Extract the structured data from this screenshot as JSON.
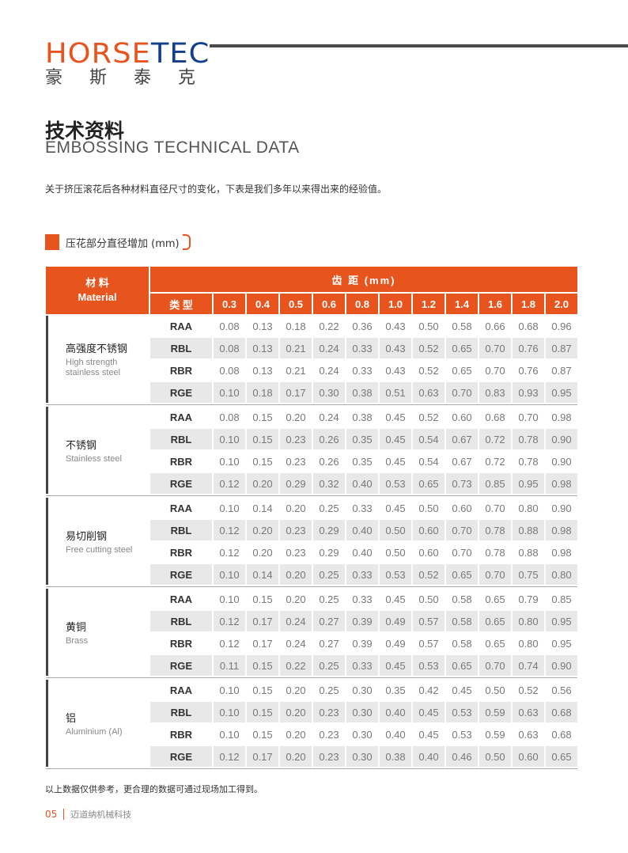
{
  "brand": {
    "logo_part1": "HORSE",
    "logo_part2": "TEC",
    "logo_cn": "豪斯泰克",
    "colors": {
      "orange": "#e8541e",
      "navy": "#123f8c"
    }
  },
  "title": {
    "cn": "技术资料",
    "en": "EMBOSSING TECHNICAL DATA"
  },
  "intro": "关于挤压滚花后各种材料直径尺寸的变化，下表是我们多年以来得出来的经验值。",
  "section_label": "压花部分直径增加 (mm)",
  "table": {
    "material_header_cn": "材 料",
    "material_header_en": "Material",
    "pitch_header": "齿 距 (mm)",
    "type_header": "类 型",
    "pitches": [
      "0.3",
      "0.4",
      "0.5",
      "0.6",
      "0.8",
      "1.0",
      "1.2",
      "1.4",
      "1.6",
      "1.8",
      "2.0"
    ],
    "groups": [
      {
        "cn": "高强度不锈钢",
        "en": "High strength stainless steel",
        "rows": [
          {
            "type": "RAA",
            "values": [
              "0.08",
              "0.13",
              "0.18",
              "0.22",
              "0.36",
              "0.43",
              "0.50",
              "0.58",
              "0.66",
              "0.68",
              "0.96"
            ]
          },
          {
            "type": "RBL",
            "values": [
              "0.08",
              "0.13",
              "0.21",
              "0.24",
              "0.33",
              "0.43",
              "0.52",
              "0.65",
              "0.70",
              "0.76",
              "0.87"
            ]
          },
          {
            "type": "RBR",
            "values": [
              "0.08",
              "0.13",
              "0.21",
              "0.24",
              "0.33",
              "0.43",
              "0.52",
              "0.65",
              "0.70",
              "0.76",
              "0.87"
            ]
          },
          {
            "type": "RGE",
            "values": [
              "0.10",
              "0.18",
              "0.17",
              "0.30",
              "0.38",
              "0.51",
              "0.63",
              "0.70",
              "0.83",
              "0.93",
              "0.95"
            ]
          }
        ]
      },
      {
        "cn": "不锈钢",
        "en": "Stainless steel",
        "rows": [
          {
            "type": "RAA",
            "values": [
              "0.08",
              "0.15",
              "0.20",
              "0.24",
              "0.38",
              "0.45",
              "0.52",
              "0.60",
              "0.68",
              "0.70",
              "0.98"
            ]
          },
          {
            "type": "RBL",
            "values": [
              "0.10",
              "0.15",
              "0.23",
              "0.26",
              "0.35",
              "0.45",
              "0.54",
              "0.67",
              "0.72",
              "0.78",
              "0.90"
            ]
          },
          {
            "type": "RBR",
            "values": [
              "0.10",
              "0.15",
              "0.23",
              "0.26",
              "0.35",
              "0.45",
              "0.54",
              "0.67",
              "0.72",
              "0.78",
              "0.90"
            ]
          },
          {
            "type": "RGE",
            "values": [
              "0.12",
              "0.20",
              "0.29",
              "0.32",
              "0.40",
              "0.53",
              "0.65",
              "0.73",
              "0.85",
              "0.95",
              "0.98"
            ]
          }
        ]
      },
      {
        "cn": "易切削钢",
        "en": "Free cutting steel",
        "rows": [
          {
            "type": "RAA",
            "values": [
              "0.10",
              "0.14",
              "0.20",
              "0.25",
              "0.33",
              "0.45",
              "0.50",
              "0.60",
              "0.70",
              "0.80",
              "0.90"
            ]
          },
          {
            "type": "RBL",
            "values": [
              "0.12",
              "0.20",
              "0.23",
              "0.29",
              "0.40",
              "0.50",
              "0.60",
              "0.70",
              "0.78",
              "0.88",
              "0.98"
            ]
          },
          {
            "type": "RBR",
            "values": [
              "0.12",
              "0.20",
              "0.23",
              "0.29",
              "0.40",
              "0.50",
              "0.60",
              "0.70",
              "0.78",
              "0.88",
              "0.98"
            ]
          },
          {
            "type": "RGE",
            "values": [
              "0.10",
              "0.14",
              "0.20",
              "0.25",
              "0.33",
              "0.53",
              "0.52",
              "0.65",
              "0.70",
              "0.75",
              "0.80"
            ]
          }
        ]
      },
      {
        "cn": "黄铜",
        "en": "Brass",
        "rows": [
          {
            "type": "RAA",
            "values": [
              "0.10",
              "0.15",
              "0.20",
              "0.25",
              "0.33",
              "0.45",
              "0.50",
              "0.58",
              "0.65",
              "0.79",
              "0.85"
            ]
          },
          {
            "type": "RBL",
            "values": [
              "0.12",
              "0.17",
              "0.24",
              "0.27",
              "0.39",
              "0.49",
              "0.57",
              "0.58",
              "0.65",
              "0.80",
              "0.95"
            ]
          },
          {
            "type": "RBR",
            "values": [
              "0.12",
              "0.17",
              "0.24",
              "0.27",
              "0.39",
              "0.49",
              "0.57",
              "0.58",
              "0.65",
              "0.80",
              "0.95"
            ]
          },
          {
            "type": "RGE",
            "values": [
              "0.11",
              "0.15",
              "0.22",
              "0.25",
              "0.33",
              "0.45",
              "0.53",
              "0.65",
              "0.70",
              "0.74",
              "0.90"
            ]
          }
        ]
      },
      {
        "cn": "铝",
        "en": "Aluminium (Al)",
        "rows": [
          {
            "type": "RAA",
            "values": [
              "0.10",
              "0.15",
              "0.20",
              "0.25",
              "0.30",
              "0.35",
              "0.42",
              "0.45",
              "0.50",
              "0.52",
              "0.56"
            ]
          },
          {
            "type": "RBL",
            "values": [
              "0.10",
              "0.15",
              "0.20",
              "0.23",
              "0.30",
              "0.40",
              "0.45",
              "0.53",
              "0.59",
              "0.63",
              "0.68"
            ]
          },
          {
            "type": "RBR",
            "values": [
              "0.10",
              "0.15",
              "0.20",
              "0.23",
              "0.30",
              "0.40",
              "0.45",
              "0.53",
              "0.59",
              "0.63",
              "0.68"
            ]
          },
          {
            "type": "RGE",
            "values": [
              "0.12",
              "0.17",
              "0.20",
              "0.23",
              "0.30",
              "0.38",
              "0.40",
              "0.46",
              "0.50",
              "0.60",
              "0.65"
            ]
          }
        ]
      }
    ]
  },
  "note": "以上数据仅供参考，更合理的数据可通过现场加工得到。",
  "footer": {
    "page": "05",
    "company": "迈道纳机械科技"
  }
}
